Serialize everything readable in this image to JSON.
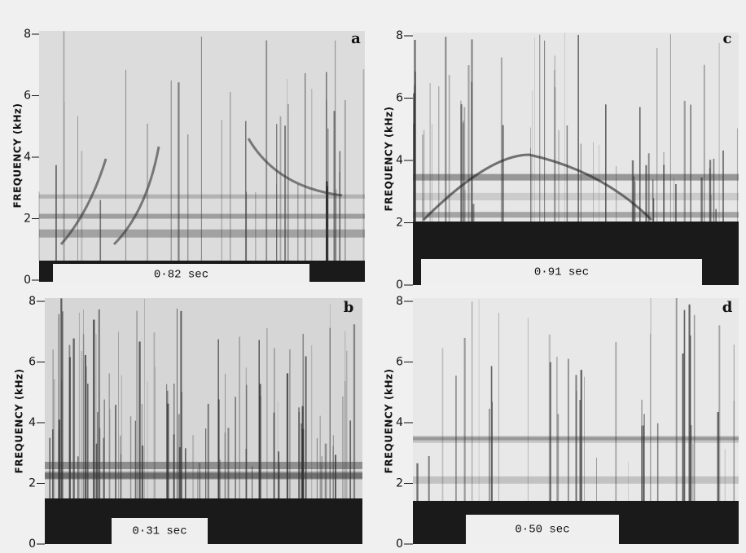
{
  "figure": {
    "panels": [
      {
        "label": "a",
        "y_label": "FREQUENCY (kHz)",
        "yticks": [
          0,
          2,
          4,
          6,
          8
        ],
        "duration": "0·82 sec"
      },
      {
        "label": "b",
        "y_label": "FREQUENCY (kHz)",
        "yticks": [
          0,
          2,
          4,
          6,
          8
        ],
        "duration": "0·31 sec"
      },
      {
        "label": "c",
        "y_label": "FREQUENCY (kHz)",
        "yticks": [
          0,
          2,
          4,
          6,
          8
        ],
        "duration": "0·91 sec"
      },
      {
        "label": "d",
        "y_label": "FREQUENCY (kHz)",
        "yticks": [
          0,
          2,
          4,
          6,
          8
        ],
        "duration": "0·50 sec"
      }
    ]
  }
}
